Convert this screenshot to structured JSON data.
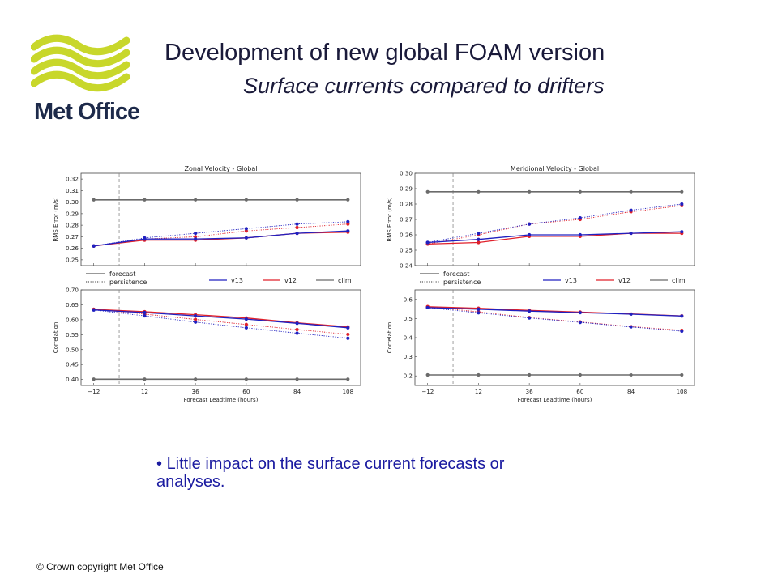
{
  "logo": {
    "text": "Met Office",
    "color": "#c8d72b"
  },
  "title": "Development of new global FOAM version",
  "subtitle": "Surface currents compared to drifters",
  "bullet": "Little impact on the surface current forecasts or analyses.",
  "footer": "© Crown copyright Met Office",
  "colors": {
    "v13": "#2020c0",
    "v12": "#e0202a",
    "clim": "#6b6b6b",
    "ref_line": "#888888"
  },
  "chart_data": [
    {
      "type": "line",
      "title": "Zonal Velocity - Global",
      "xlabel": "Forecast Leadtime (hours)",
      "x": [
        -12,
        12,
        36,
        60,
        84,
        108
      ],
      "xticks": [
        "−12",
        "12",
        "36",
        "60",
        "84",
        "108"
      ],
      "reference_x": 0,
      "legend_styles": [
        "forecast",
        "persistence"
      ],
      "legend_series": [
        "v13",
        "v12",
        "clim"
      ],
      "rms": {
        "ylabel": "RMS Error (m/s)",
        "ylim": [
          0.245,
          0.325
        ],
        "yticks": [
          "0.25",
          "0.26",
          "0.27",
          "0.28",
          "0.29",
          "0.30",
          "0.31",
          "0.32"
        ],
        "series": [
          {
            "name": "v13",
            "style": "forecast",
            "values": [
              0.262,
              0.268,
              0.268,
              0.269,
              0.273,
              0.275
            ]
          },
          {
            "name": "v12",
            "style": "forecast",
            "values": [
              0.262,
              0.267,
              0.267,
              0.269,
              0.273,
              0.274
            ]
          },
          {
            "name": "v13",
            "style": "persistence",
            "values": [
              0.262,
              0.269,
              0.273,
              0.277,
              0.281,
              0.283
            ]
          },
          {
            "name": "v12",
            "style": "persistence",
            "values": [
              0.262,
              0.268,
              0.27,
              0.275,
              0.278,
              0.281
            ]
          },
          {
            "name": "clim",
            "style": "forecast",
            "values": [
              0.302,
              0.302,
              0.302,
              0.302,
              0.302,
              0.302
            ]
          }
        ]
      },
      "corr": {
        "ylabel": "Correlation",
        "ylim": [
          0.38,
          0.7
        ],
        "yticks": [
          "0.40",
          "0.45",
          "0.50",
          "0.55",
          "0.60",
          "0.65",
          "0.70"
        ],
        "series": [
          {
            "name": "v13",
            "style": "forecast",
            "values": [
              0.633,
              0.624,
              0.613,
              0.602,
              0.588,
              0.573
            ]
          },
          {
            "name": "v12",
            "style": "forecast",
            "values": [
              0.635,
              0.627,
              0.617,
              0.606,
              0.59,
              0.576
            ]
          },
          {
            "name": "v13",
            "style": "persistence",
            "values": [
              0.633,
              0.613,
              0.592,
              0.573,
              0.555,
              0.538
            ]
          },
          {
            "name": "v12",
            "style": "persistence",
            "values": [
              0.635,
              0.619,
              0.601,
              0.584,
              0.567,
              0.551
            ]
          },
          {
            "name": "clim",
            "style": "forecast",
            "values": [
              0.401,
              0.401,
              0.401,
              0.401,
              0.401,
              0.401
            ]
          }
        ]
      }
    },
    {
      "type": "line",
      "title": "Meridional Velocity - Global",
      "xlabel": "Forecast Leadtime (hours)",
      "x": [
        -12,
        12,
        36,
        60,
        84,
        108
      ],
      "xticks": [
        "−12",
        "12",
        "36",
        "60",
        "84",
        "108"
      ],
      "reference_x": 0,
      "legend_styles": [
        "forecast",
        "persistence"
      ],
      "legend_series": [
        "v13",
        "v12",
        "clim"
      ],
      "rms": {
        "ylabel": "RMS Error (m/s)",
        "ylim": [
          0.24,
          0.3
        ],
        "yticks": [
          "0.24",
          "0.25",
          "0.26",
          "0.27",
          "0.28",
          "0.29",
          "0.30"
        ],
        "series": [
          {
            "name": "v13",
            "style": "forecast",
            "values": [
              0.255,
              0.257,
              0.26,
              0.26,
              0.261,
              0.262
            ]
          },
          {
            "name": "v12",
            "style": "forecast",
            "values": [
              0.254,
              0.255,
              0.259,
              0.259,
              0.261,
              0.261
            ]
          },
          {
            "name": "v13",
            "style": "persistence",
            "values": [
              0.255,
              0.261,
              0.267,
              0.271,
              0.276,
              0.28
            ]
          },
          {
            "name": "v12",
            "style": "persistence",
            "values": [
              0.254,
              0.26,
              0.267,
              0.27,
              0.275,
              0.279
            ]
          },
          {
            "name": "clim",
            "style": "forecast",
            "values": [
              0.288,
              0.288,
              0.288,
              0.288,
              0.288,
              0.288
            ]
          }
        ]
      },
      "corr": {
        "ylabel": "Correlation",
        "ylim": [
          0.15,
          0.65
        ],
        "yticks": [
          "0.2",
          "0.3",
          "0.4",
          "0.5",
          "0.6"
        ],
        "series": [
          {
            "name": "v13",
            "style": "forecast",
            "values": [
              0.557,
              0.549,
              0.539,
              0.531,
              0.523,
              0.513
            ]
          },
          {
            "name": "v12",
            "style": "forecast",
            "values": [
              0.562,
              0.554,
              0.543,
              0.534,
              0.524,
              0.514
            ]
          },
          {
            "name": "v13",
            "style": "persistence",
            "values": [
              0.557,
              0.53,
              0.503,
              0.48,
              0.456,
              0.434
            ]
          },
          {
            "name": "v12",
            "style": "persistence",
            "values": [
              0.562,
              0.535,
              0.505,
              0.482,
              0.458,
              0.438
            ]
          },
          {
            "name": "clim",
            "style": "forecast",
            "values": [
              0.205,
              0.205,
              0.205,
              0.205,
              0.205,
              0.205
            ]
          }
        ]
      }
    }
  ]
}
